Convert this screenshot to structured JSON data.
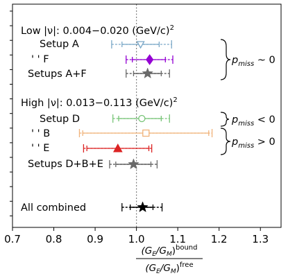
{
  "chart_data": {
    "type": "scatter",
    "orientation": "horizontal",
    "xlim": [
      0.7,
      1.35
    ],
    "x_ticks": [
      0.7,
      0.8,
      0.9,
      1.0,
      1.1,
      1.2,
      1.3
    ],
    "x_tick_labels": [
      "0.7",
      "0.8",
      "0.9",
      "1.0",
      "1.1",
      "1.2",
      "1.3"
    ],
    "xlabel_num_main": "(G",
    "xlabel_num_sub1": "E",
    "xlabel_num_mid": "/G",
    "xlabel_num_sub2": "M",
    "xlabel_num_close": ")",
    "xlabel_num_sup": "bound",
    "xlabel_den_main": "(G",
    "xlabel_den_sub1": "E",
    "xlabel_den_mid": "/G",
    "xlabel_den_sub2": "M",
    "xlabel_den_close": ")",
    "xlabel_den_sup": "free",
    "reference_line_x": 1.0,
    "grid": false,
    "group_titles": [
      {
        "text": "Low |ν|:   0.004−0.020 (GeV/c)",
        "sup": "2"
      },
      {
        "text": "High |ν|:   0.013−0.113 (GeV/c)",
        "sup": "2"
      }
    ],
    "series": [
      {
        "name": "Setup A",
        "x": 1.01,
        "stat": [
          0.965,
          1.055
        ],
        "total": [
          0.94,
          1.085
        ],
        "marker": "triangle-down-open",
        "color": "#7aa7c7"
      },
      {
        "name": "' ' F",
        "x": 1.032,
        "stat": [
          0.99,
          1.07
        ],
        "total": [
          0.975,
          1.088
        ],
        "marker": "diamond",
        "color": "#9400d3"
      },
      {
        "name": "Setups A+F",
        "x": 1.027,
        "stat": [
          0.993,
          1.06
        ],
        "total": [
          0.975,
          1.08
        ],
        "marker": "star",
        "color": "#696969"
      },
      {
        "name": "Setup D",
        "x": 1.013,
        "stat": [
          0.957,
          1.06
        ],
        "total": [
          0.943,
          1.08
        ],
        "marker": "circle-open",
        "color": "#77c477"
      },
      {
        "name": "' ' B",
        "x": 1.023,
        "stat": [
          0.87,
          1.175
        ],
        "total": [
          0.862,
          1.183
        ],
        "marker": "square-open",
        "color": "#f0b27a"
      },
      {
        "name": "' ' E",
        "x": 0.955,
        "stat": [
          0.88,
          1.03
        ],
        "total": [
          0.872,
          1.037
        ],
        "marker": "triangle-up",
        "color": "#dc2323"
      },
      {
        "name": "Setups D+B+E",
        "x": 0.993,
        "stat": [
          0.95,
          1.035
        ],
        "total": [
          0.935,
          1.05
        ],
        "marker": "star",
        "color": "#696969"
      },
      {
        "name": "All combined",
        "x": 1.015,
        "stat": [
          0.985,
          1.04
        ],
        "total": [
          0.965,
          1.062
        ],
        "marker": "star",
        "color": "#000000"
      }
    ],
    "brace_annotations": [
      {
        "label": "p",
        "sub": "miss",
        "rel": " ~ 0"
      },
      {
        "label": "p",
        "sub": "miss",
        "rel": " < 0"
      },
      {
        "label": "p",
        "sub": "miss",
        "rel": " > 0"
      }
    ]
  }
}
